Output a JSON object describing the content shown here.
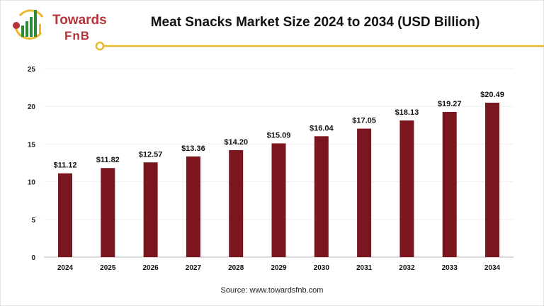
{
  "logo": {
    "line1": "Towards",
    "line2": "FnB"
  },
  "colors": {
    "bar": "#7b1520",
    "accent": "#e8b92a",
    "brand": "#b5343a"
  },
  "source": "Source: www.towardsfnb.com",
  "chart_data": {
    "type": "bar",
    "title": "Meat Snacks Market Size 2024 to 2034 (USD Billion)",
    "xlabel": "",
    "ylabel": "",
    "categories": [
      "2024",
      "2025",
      "2026",
      "2027",
      "2028",
      "2029",
      "2030",
      "2031",
      "2032",
      "2033",
      "2034"
    ],
    "values": [
      11.12,
      11.82,
      12.57,
      13.36,
      14.2,
      15.09,
      16.04,
      17.05,
      18.13,
      19.27,
      20.49
    ],
    "data_labels": [
      "$11.12",
      "$11.82",
      "$12.57",
      "$13.36",
      "$14.20",
      "$15.09",
      "$16.04",
      "$17.05",
      "$18.13",
      "$19.27",
      "$20.49"
    ],
    "ylim": [
      0,
      25
    ],
    "yticks": [
      "0",
      "5",
      "10",
      "15",
      "20",
      "25"
    ],
    "grid": true,
    "legend": "none"
  }
}
